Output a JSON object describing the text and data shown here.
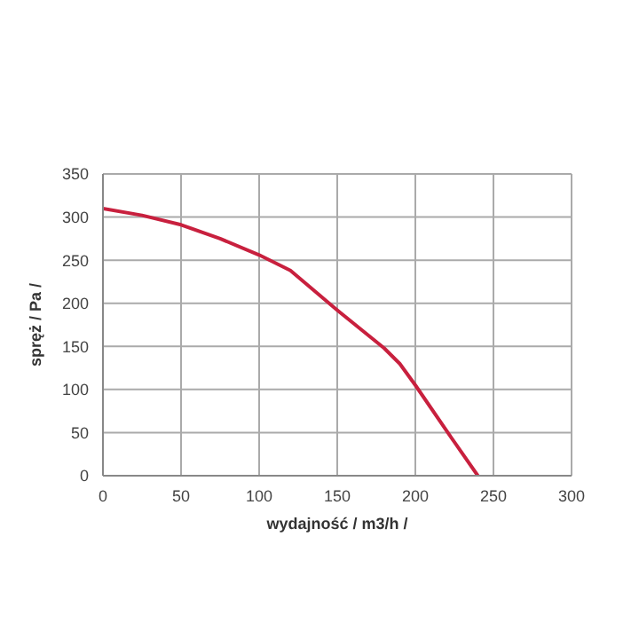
{
  "chart_data": {
    "type": "line",
    "xlabel": "wydajność  / m3/h /",
    "ylabel": "spręż  / Pa /",
    "x": [
      0,
      25,
      50,
      75,
      100,
      120,
      150,
      180,
      190,
      200,
      220,
      240
    ],
    "series": [
      {
        "color": "#c8203e",
        "values": [
          310,
          302,
          291,
          275,
          256,
          238,
          192,
          148,
          130,
          105,
          52,
          0
        ]
      }
    ],
    "xlim": [
      0,
      300
    ],
    "xticks": [
      0,
      50,
      100,
      150,
      200,
      250,
      300
    ],
    "ylim": [
      0,
      350
    ],
    "yticks": [
      0,
      50,
      100,
      150,
      200,
      250,
      300,
      350
    ],
    "grid": true,
    "legend": false,
    "marker": "none",
    "line_style": "solid"
  }
}
